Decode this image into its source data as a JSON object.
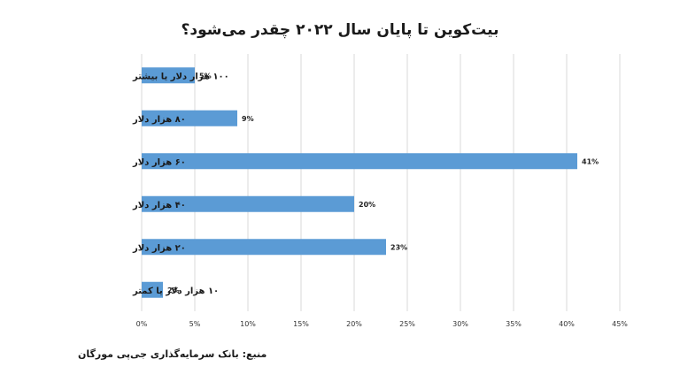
{
  "chart_data": {
    "type": "bar",
    "orientation": "horizontal",
    "title": "بیت‌کوین تا پایان سال ۲۰۲۲ چقدر می‌شود؟",
    "categories": [
      "۱۰۰ هزار دلار یا بیشتر",
      "۸۰ هزار دلار",
      "۶۰ هزار دلار",
      "۴۰ هزار دلار",
      "۲۰ هزار دلار",
      "۱۰ هزار دلار یا کمتر"
    ],
    "values": [
      5,
      9,
      41,
      20,
      23,
      2
    ],
    "value_labels": [
      "5%",
      "9%",
      "41%",
      "20%",
      "23%",
      "2%"
    ],
    "xlim": [
      0,
      45
    ],
    "x_ticks": [
      0,
      5,
      10,
      15,
      20,
      25,
      30,
      35,
      40,
      45
    ],
    "x_tick_labels": [
      "0%",
      "5%",
      "10%",
      "15%",
      "20%",
      "25%",
      "30%",
      "35%",
      "40%",
      "45%"
    ],
    "grid": "vertical",
    "bar_color": "#5b9bd5",
    "grid_color": "#d9d9d9"
  },
  "source_note": "منبع: بانک سرمایه‌گذاری جی‌پی مورگان"
}
